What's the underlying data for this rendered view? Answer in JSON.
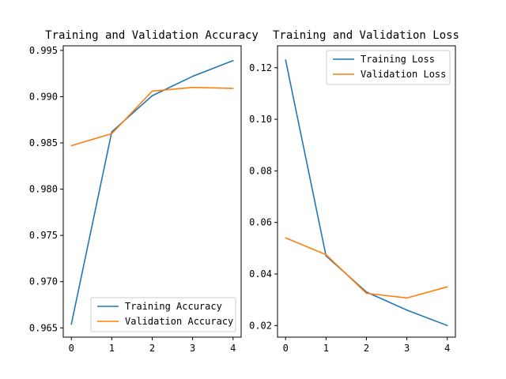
{
  "chart_data": [
    {
      "type": "line",
      "title": "Training and Validation Accuracy",
      "xlabel": "",
      "ylabel": "",
      "x": [
        0,
        1,
        2,
        3,
        4
      ],
      "xticks": [
        "0",
        "1",
        "2",
        "3",
        "4"
      ],
      "ylim": [
        0.964,
        0.9955
      ],
      "yticks": [
        "0.965",
        "0.970",
        "0.975",
        "0.980",
        "0.985",
        "0.990",
        "0.995"
      ],
      "ytick_values": [
        0.965,
        0.97,
        0.975,
        0.98,
        0.985,
        0.99,
        0.995
      ],
      "legend": "lower-right",
      "grid": false,
      "series": [
        {
          "name": "Training Accuracy",
          "color": "#1f77b4",
          "values": [
            0.9654,
            0.9862,
            0.9901,
            0.9922,
            0.9939
          ]
        },
        {
          "name": "Validation Accuracy",
          "color": "#ff7f0e",
          "values": [
            0.9847,
            0.986,
            0.9906,
            0.991,
            0.9909
          ]
        }
      ]
    },
    {
      "type": "line",
      "title": "Training and Validation Loss",
      "xlabel": "",
      "ylabel": "",
      "x": [
        0,
        1,
        2,
        3,
        4
      ],
      "xticks": [
        "0",
        "1",
        "2",
        "3",
        "4"
      ],
      "ylim": [
        0.0155,
        0.1285
      ],
      "yticks": [
        "0.02",
        "0.04",
        "0.06",
        "0.08",
        "0.10",
        "0.12"
      ],
      "ytick_values": [
        0.02,
        0.04,
        0.06,
        0.08,
        0.1,
        0.12
      ],
      "legend": "upper-right",
      "grid": false,
      "series": [
        {
          "name": "Training Loss",
          "color": "#1f77b4",
          "values": [
            0.123,
            0.047,
            0.033,
            0.026,
            0.02
          ]
        },
        {
          "name": "Validation Loss",
          "color": "#ff7f0e",
          "values": [
            0.054,
            0.0475,
            0.0325,
            0.0307,
            0.035
          ]
        }
      ]
    }
  ]
}
